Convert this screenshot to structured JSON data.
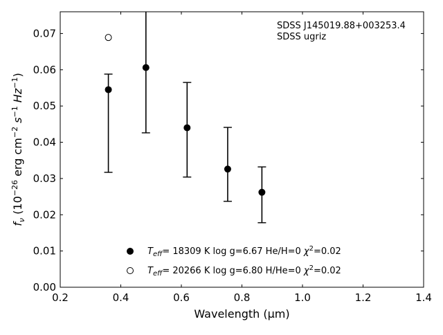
{
  "chart_data": {
    "type": "scatter",
    "xlabel": "Wavelength (μm)",
    "ylabel": {
      "lead": "f",
      "sub": "ν",
      "unit_open": " (10",
      "exp1": "−26",
      "unit_mid": " erg cm",
      "exp2": "−2",
      "unit_s": " s",
      "exp3": "−1",
      "unit_hz": " Hz",
      "exp4": "−1",
      "unit_close": ")"
    },
    "xlim": [
      0.2,
      1.4
    ],
    "ylim": [
      0.0,
      0.076
    ],
    "x_ticks": [
      "0.2",
      "0.4",
      "0.6",
      "0.8",
      "1.0",
      "1.2",
      "1.4"
    ],
    "y_ticks": [
      "0.00",
      "0.01",
      "0.02",
      "0.03",
      "0.04",
      "0.05",
      "0.06",
      "0.07"
    ],
    "annotations": [
      "SDSS J145019.88+003253.4",
      "SDSS ugriz"
    ],
    "series": [
      {
        "marker": "filled-circle",
        "points": [
          {
            "x": 0.359,
            "y": 0.0545,
            "ylow": 0.0317,
            "yhigh": 0.0588
          },
          {
            "x": 0.483,
            "y": 0.0606,
            "ylow": 0.0426,
            "yhigh": 0.076
          },
          {
            "x": 0.619,
            "y": 0.044,
            "ylow": 0.0304,
            "yhigh": 0.0565
          },
          {
            "x": 0.753,
            "y": 0.0326,
            "ylow": 0.0237,
            "yhigh": 0.0441
          },
          {
            "x": 0.866,
            "y": 0.0262,
            "ylow": 0.0178,
            "yhigh": 0.0332
          }
        ]
      },
      {
        "marker": "open-circle",
        "points": [
          {
            "x": 0.359,
            "y": 0.0689
          }
        ]
      }
    ],
    "legend": [
      {
        "marker": "filled-circle",
        "t": "T",
        "sub": "eff",
        "rest": "= 18309 K  log g=6.67  He/H=0  ",
        "chi": "χ",
        "chi_exp": "2",
        "chi_val": "=0.02"
      },
      {
        "marker": "open-circle",
        "t": "T",
        "sub": "eff",
        "rest": "= 20266 K  log g=6.80  H/He=0  ",
        "chi": "χ",
        "chi_exp": "2",
        "chi_val": "=0.02"
      }
    ]
  }
}
